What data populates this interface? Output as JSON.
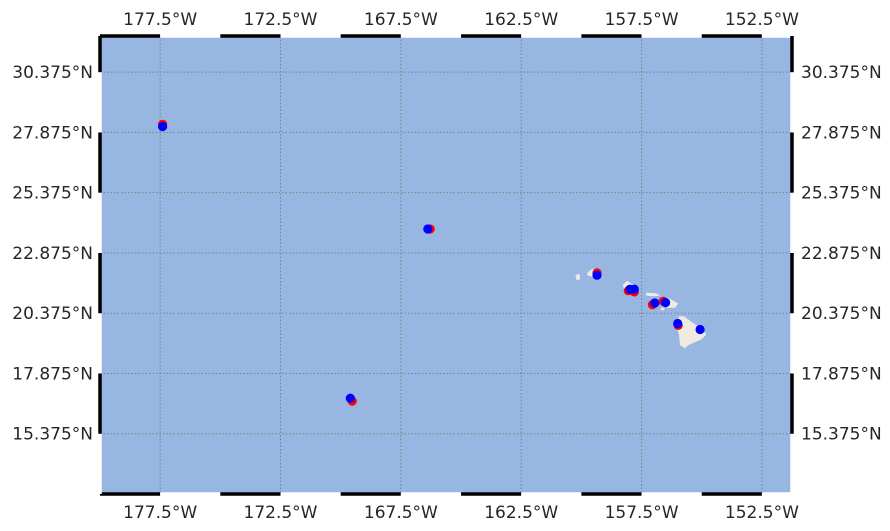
{
  "map": {
    "projection": "equirectangular",
    "extent": {
      "lon_min": -180.0,
      "lon_max": -151.25,
      "lat_min": 12.875,
      "lat_max": 31.875
    },
    "colors": {
      "ocean": "#97b6e1",
      "land": "#efebe0",
      "grid": "#808080",
      "frame": "#000000",
      "obs": "#ff0000",
      "pred": "#0000ff"
    },
    "lon_ticks": [
      {
        "value": -177.5,
        "label": "177.5°W"
      },
      {
        "value": -172.5,
        "label": "172.5°W"
      },
      {
        "value": -167.5,
        "label": "167.5°W"
      },
      {
        "value": -162.5,
        "label": "162.5°W"
      },
      {
        "value": -157.5,
        "label": "157.5°W"
      },
      {
        "value": -152.5,
        "label": "152.5°W"
      }
    ],
    "lat_ticks": [
      {
        "value": 15.375,
        "label": "15.375°N"
      },
      {
        "value": 17.875,
        "label": "17.875°N"
      },
      {
        "value": 20.375,
        "label": "20.375°N"
      },
      {
        "value": 22.875,
        "label": "22.875°N"
      },
      {
        "value": 25.375,
        "label": "25.375°N"
      },
      {
        "value": 27.875,
        "label": "27.875°N"
      },
      {
        "value": 30.375,
        "label": "30.375°N"
      }
    ],
    "frame_segment_deg": 2.5,
    "points": [
      {
        "name": "midway-obs",
        "lon": -177.4,
        "lat": 28.21,
        "color": "obs"
      },
      {
        "name": "midway-pred",
        "lon": -177.4,
        "lat": 28.12,
        "color": "pred"
      },
      {
        "name": "french-frigate-obs",
        "lon": -166.28,
        "lat": 23.87,
        "color": "obs"
      },
      {
        "name": "french-frigate-pred",
        "lon": -166.38,
        "lat": 23.87,
        "color": "pred"
      },
      {
        "name": "johnston-obs",
        "lon": -169.52,
        "lat": 16.73,
        "color": "obs"
      },
      {
        "name": "johnston-pred",
        "lon": -169.6,
        "lat": 16.85,
        "color": "pred"
      },
      {
        "name": "kauai-obs",
        "lon": -159.35,
        "lat": 22.05,
        "color": "obs"
      },
      {
        "name": "kauai-pred",
        "lon": -159.35,
        "lat": 21.95,
        "color": "pred"
      },
      {
        "name": "oahu-obs-1",
        "lon": -158.05,
        "lat": 21.31,
        "color": "obs"
      },
      {
        "name": "oahu-obs-2",
        "lon": -157.8,
        "lat": 21.26,
        "color": "obs"
      },
      {
        "name": "oahu-pred-1",
        "lon": -157.98,
        "lat": 21.37,
        "color": "pred"
      },
      {
        "name": "oahu-pred-2",
        "lon": -157.8,
        "lat": 21.37,
        "color": "pred"
      },
      {
        "name": "molokai-obs",
        "lon": -157.05,
        "lat": 20.73,
        "color": "obs"
      },
      {
        "name": "molokai-pred",
        "lon": -156.95,
        "lat": 20.8,
        "color": "pred"
      },
      {
        "name": "maui-obs",
        "lon": -156.6,
        "lat": 20.87,
        "color": "obs"
      },
      {
        "name": "maui-pred",
        "lon": -156.5,
        "lat": 20.82,
        "color": "pred"
      },
      {
        "name": "kona-obs",
        "lon": -155.98,
        "lat": 19.87,
        "color": "obs"
      },
      {
        "name": "kona-pred",
        "lon": -156.0,
        "lat": 19.95,
        "color": "pred"
      },
      {
        "name": "hilo-pred",
        "lon": -155.07,
        "lat": 19.7,
        "color": "pred"
      }
    ]
  }
}
